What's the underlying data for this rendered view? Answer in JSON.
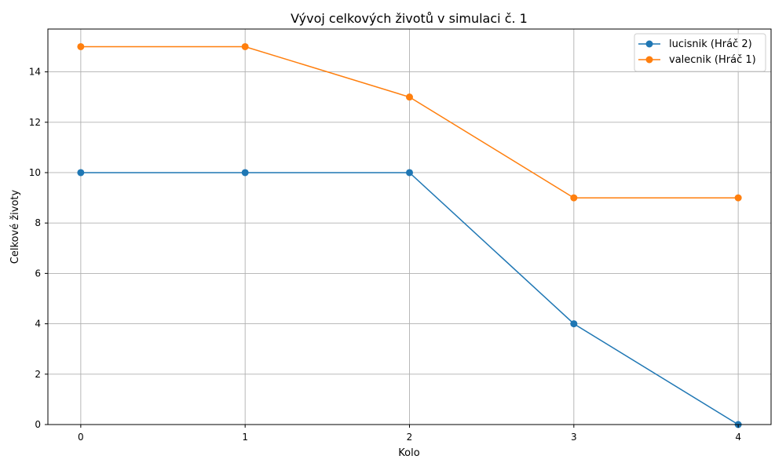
{
  "chart_data": {
    "type": "line",
    "title": "Vývoj celkových životů v simulaci č. 1",
    "xlabel": "Kolo",
    "ylabel": "Celkové životy",
    "x": [
      0,
      1,
      2,
      3,
      4
    ],
    "xlim": [
      -0.2,
      4.2
    ],
    "ylim": [
      0,
      15.7
    ],
    "xticks": [
      "0",
      "1",
      "2",
      "3",
      "4"
    ],
    "yticks": [
      "0",
      "2",
      "4",
      "6",
      "8",
      "10",
      "12",
      "14"
    ],
    "grid": true,
    "legend_position": "top-right",
    "series": [
      {
        "name": "lucisnik (Hráč 2)",
        "color": "#1f77b4",
        "marker": "circle",
        "values": [
          10,
          10,
          10,
          4,
          0
        ]
      },
      {
        "name": "valecnik (Hráč 1)",
        "color": "#ff7f0e",
        "marker": "circle",
        "values": [
          15,
          15,
          13,
          9,
          9
        ]
      }
    ]
  }
}
